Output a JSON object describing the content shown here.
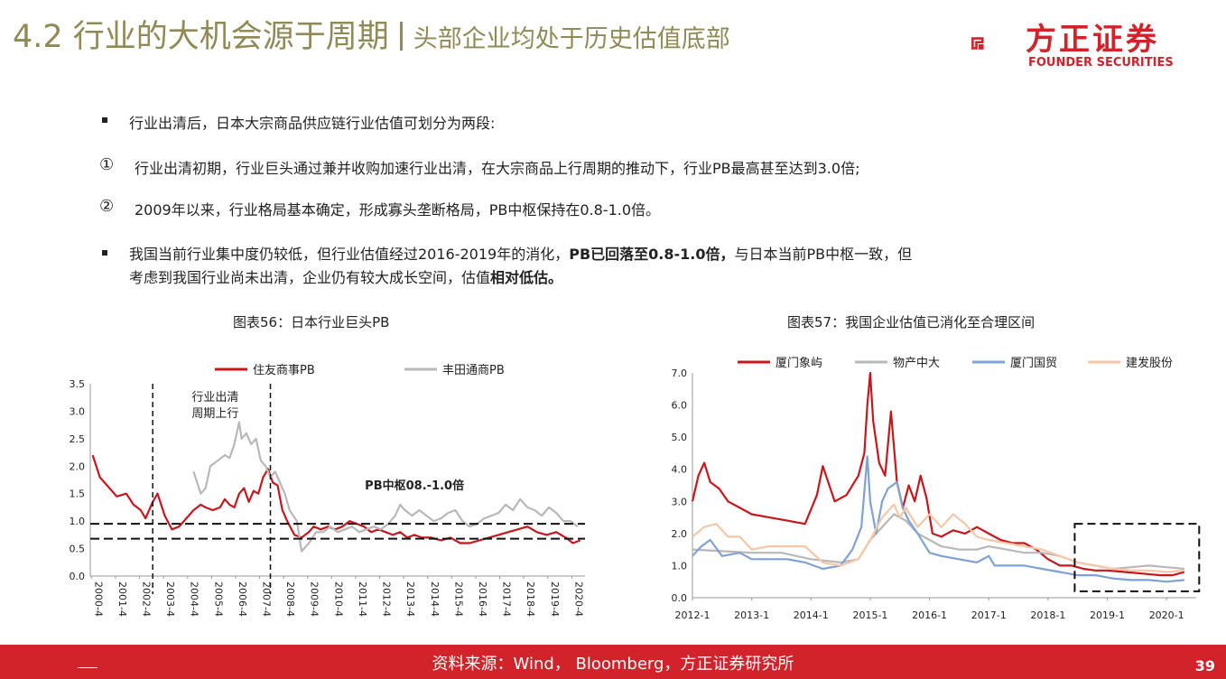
{
  "header": {
    "title": "4.2 行业的大机会源于周期",
    "subtitle": "头部企业均处于历史估值底部"
  },
  "logo": {
    "cn": "方正证券",
    "en": "FOUNDER SECURITIES",
    "color": "#d2232a"
  },
  "bullets": {
    "b1": "行业出清后，日本大宗商品供应链行业估值可划分为两段:",
    "c1_mark": "①",
    "c1": "行业出清初期，行业巨头通过兼并收购加速行业出清，在大宗商品上行周期的推动下，行业PB最高甚至达到3.0倍;",
    "c2_mark": "②",
    "c2": "2009年以来，行业格局基本确定，形成寡头垄断格局，PB中枢保持在0.8-1.0倍。",
    "b2_p1": "我国当前行业集中度仍较低，但行业估值经过2016-2019年的消化，",
    "b2_bold": "PB已回落至0.8-1.0倍，",
    "b2_p2": "与日本当前PB中枢一致，但",
    "b2_l2_p1": "考虑到我国行业尚未出清，企业仍有较大成长空间，估值",
    "b2_l2_bold": "相对低估。"
  },
  "chart_titles": {
    "left": "图表56：日本行业巨头PB",
    "right": "图表57：我国企业估值已消化至合理区间"
  },
  "footer": {
    "source": "资料来源：Wind， Bloomberg，方正证券研究所",
    "page": "39"
  },
  "chart_data": [
    {
      "type": "line",
      "x_ticks": [
        "2000-4",
        "2001-4",
        "2002-4",
        "2003-4",
        "2004-4",
        "2005-4",
        "2006-4",
        "2007-4",
        "2008-4",
        "2009-4",
        "2010-4",
        "2011-4",
        "2012-4",
        "2013-4",
        "2014-4",
        "2015-4",
        "2016-4",
        "2017-4",
        "2018-4",
        "2019-4",
        "2020-4"
      ],
      "y_ticks": [
        "0.0",
        "0.5",
        "1.0",
        "1.5",
        "2.0",
        "2.5",
        "3.0",
        "3.5"
      ],
      "ylim": [
        0,
        3.5
      ],
      "series": [
        {
          "name": "住友商事PB",
          "color": "#c8161d",
          "x": [
            2000.3,
            2000.6,
            2001.0,
            2001.3,
            2001.7,
            2002.0,
            2002.3,
            2002.5,
            2002.8,
            2003.0,
            2003.3,
            2003.6,
            2003.9,
            2004.2,
            2004.5,
            2004.8,
            2005.0,
            2005.3,
            2005.6,
            2005.8,
            2006.0,
            2006.2,
            2006.4,
            2006.6,
            2006.8,
            2007.0,
            2007.2,
            2007.4,
            2007.6,
            2007.8,
            2008.0,
            2008.2,
            2008.4,
            2008.7,
            2009.0,
            2009.3,
            2009.5,
            2009.8,
            2010.1,
            2010.4,
            2010.7,
            2011.0,
            2011.3,
            2011.6,
            2011.9,
            2012.2,
            2012.5,
            2012.8,
            2013.1,
            2013.4,
            2013.7,
            2014.0,
            2014.4,
            2014.8,
            2015.2,
            2015.6,
            2016.0,
            2016.4,
            2016.8,
            2017.2,
            2017.6,
            2018.0,
            2018.4,
            2018.8,
            2019.2,
            2019.6,
            2020.0,
            2020.3,
            2020.6
          ],
          "y": [
            2.2,
            1.8,
            1.6,
            1.45,
            1.5,
            1.3,
            1.2,
            1.05,
            1.35,
            1.5,
            1.1,
            0.85,
            0.9,
            1.05,
            1.2,
            1.3,
            1.25,
            1.2,
            1.25,
            1.4,
            1.3,
            1.25,
            1.5,
            1.6,
            1.35,
            1.55,
            1.5,
            1.8,
            1.95,
            1.7,
            1.65,
            1.2,
            1.0,
            0.75,
            0.7,
            0.8,
            0.9,
            0.85,
            0.9,
            0.85,
            0.9,
            1.0,
            0.95,
            0.9,
            0.8,
            0.85,
            0.8,
            0.75,
            0.8,
            0.7,
            0.75,
            0.7,
            0.7,
            0.65,
            0.7,
            0.6,
            0.6,
            0.65,
            0.7,
            0.75,
            0.8,
            0.85,
            0.9,
            0.8,
            0.75,
            0.8,
            0.7,
            0.6,
            0.65
          ]
        },
        {
          "name": "丰田通商PB",
          "color": "#b8b8b8",
          "x": [
            2004.5,
            2004.8,
            2005.0,
            2005.2,
            2005.5,
            2005.8,
            2006.0,
            2006.2,
            2006.4,
            2006.5,
            2006.7,
            2006.9,
            2007.1,
            2007.3,
            2007.5,
            2007.7,
            2007.9,
            2008.1,
            2008.3,
            2008.5,
            2008.8,
            2009.0,
            2009.3,
            2009.6,
            2009.9,
            2010.2,
            2010.5,
            2010.8,
            2011.1,
            2011.4,
            2011.7,
            2012.0,
            2012.3,
            2012.6,
            2012.9,
            2013.1,
            2013.3,
            2013.6,
            2013.9,
            2014.2,
            2014.5,
            2014.8,
            2015.1,
            2015.4,
            2015.7,
            2016.0,
            2016.3,
            2016.6,
            2016.9,
            2017.2,
            2017.5,
            2017.8,
            2018.1,
            2018.4,
            2018.7,
            2019.0,
            2019.3,
            2019.6,
            2019.9,
            2020.2,
            2020.5
          ],
          "y": [
            1.9,
            1.5,
            1.6,
            2.0,
            2.1,
            2.2,
            2.15,
            2.4,
            2.8,
            2.5,
            2.6,
            2.4,
            2.5,
            2.1,
            2.0,
            1.8,
            1.9,
            1.7,
            1.5,
            1.2,
            1.0,
            0.45,
            0.6,
            0.8,
            0.8,
            0.9,
            0.8,
            0.85,
            0.9,
            0.8,
            0.85,
            0.9,
            0.85,
            0.95,
            1.1,
            1.3,
            1.2,
            1.1,
            1.2,
            1.1,
            1.0,
            1.05,
            1.15,
            1.2,
            1.0,
            0.9,
            0.95,
            1.05,
            1.1,
            1.15,
            1.3,
            1.2,
            1.4,
            1.25,
            1.2,
            1.1,
            1.25,
            1.15,
            1.0,
            1.0,
            0.9
          ]
        }
      ],
      "annotations": {
        "cycle_label_l1": "行业出清",
        "cycle_label_l2": "周期上行",
        "center_label": "PB中枢08.-1.0倍"
      }
    },
    {
      "type": "line",
      "x_ticks": [
        "2012-1",
        "2013-1",
        "2014-1",
        "2015-1",
        "2016-1",
        "2017-1",
        "2018-1",
        "2019-1",
        "2020-1"
      ],
      "y_ticks": [
        "0.0",
        "1.0",
        "2.0",
        "3.0",
        "4.0",
        "5.0",
        "6.0",
        "7.0"
      ],
      "ylim": [
        0,
        7
      ],
      "series": [
        {
          "name": "厦门象屿",
          "color": "#c8161d",
          "x": [
            2012.0,
            2012.1,
            2012.2,
            2012.3,
            2012.45,
            2012.6,
            2012.8,
            2013.0,
            2013.3,
            2013.6,
            2013.9,
            2014.1,
            2014.2,
            2014.4,
            2014.6,
            2014.8,
            2014.9,
            2014.95,
            2015.0,
            2015.05,
            2015.15,
            2015.25,
            2015.35,
            2015.45,
            2015.55,
            2015.65,
            2015.75,
            2015.85,
            2015.95,
            2016.05,
            2016.2,
            2016.4,
            2016.6,
            2016.8,
            2017.0,
            2017.2,
            2017.4,
            2017.6,
            2017.8,
            2018.0,
            2018.2,
            2018.4,
            2018.6,
            2018.8,
            2019.0,
            2019.3,
            2019.6,
            2019.9,
            2020.1,
            2020.3
          ],
          "y": [
            3.0,
            3.8,
            4.2,
            3.6,
            3.4,
            3.0,
            2.8,
            2.6,
            2.5,
            2.4,
            2.3,
            3.2,
            4.1,
            3.0,
            3.2,
            3.8,
            4.5,
            6.0,
            7.0,
            5.5,
            4.2,
            3.8,
            5.8,
            3.6,
            2.8,
            3.5,
            3.0,
            3.8,
            3.1,
            2.0,
            1.9,
            2.1,
            2.0,
            2.2,
            2.0,
            1.8,
            1.7,
            1.7,
            1.5,
            1.2,
            1.0,
            1.0,
            0.9,
            0.85,
            0.85,
            0.8,
            0.75,
            0.7,
            0.7,
            0.8
          ]
        },
        {
          "name": "物产中大",
          "color": "#b8b8b8",
          "x": [
            2012.0,
            2012.5,
            2013.0,
            2013.5,
            2014.0,
            2014.5,
            2014.8,
            2015.0,
            2015.2,
            2015.4,
            2015.6,
            2015.8,
            2016.0,
            2016.2,
            2016.5,
            2016.8,
            2017.0,
            2017.3,
            2017.6,
            2017.9,
            2018.2,
            2018.5,
            2018.8,
            2019.1,
            2019.4,
            2019.7,
            2020.0,
            2020.3
          ],
          "y": [
            1.5,
            1.45,
            1.4,
            1.4,
            1.2,
            1.1,
            1.2,
            1.8,
            2.2,
            2.6,
            2.4,
            2.0,
            1.8,
            1.6,
            1.5,
            1.5,
            1.6,
            1.5,
            1.4,
            1.4,
            1.3,
            1.1,
            1.0,
            0.9,
            0.95,
            1.0,
            0.95,
            0.9
          ]
        },
        {
          "name": "厦门国贸",
          "color": "#7fa1d6",
          "x": [
            2012.0,
            2012.15,
            2012.3,
            2012.5,
            2012.8,
            2013.0,
            2013.3,
            2013.6,
            2013.9,
            2014.2,
            2014.5,
            2014.7,
            2014.85,
            2014.95,
            2015.0,
            2015.1,
            2015.2,
            2015.3,
            2015.45,
            2015.55,
            2015.65,
            2015.8,
            2016.0,
            2016.2,
            2016.5,
            2016.8,
            2017.0,
            2017.1,
            2017.3,
            2017.6,
            2017.9,
            2018.2,
            2018.5,
            2018.8,
            2019.1,
            2019.4,
            2019.7,
            2020.0,
            2020.3
          ],
          "y": [
            1.3,
            1.6,
            1.8,
            1.3,
            1.4,
            1.2,
            1.2,
            1.2,
            1.1,
            0.9,
            1.0,
            1.5,
            2.2,
            4.4,
            3.0,
            2.0,
            3.0,
            3.4,
            3.6,
            2.8,
            2.4,
            2.0,
            1.4,
            1.3,
            1.2,
            1.1,
            1.3,
            1.0,
            1.0,
            1.0,
            0.9,
            0.8,
            0.7,
            0.7,
            0.6,
            0.55,
            0.55,
            0.5,
            0.55
          ]
        },
        {
          "name": "建发股份",
          "color": "#f5c7a6",
          "x": [
            2012.0,
            2012.2,
            2012.4,
            2012.6,
            2012.8,
            2013.0,
            2013.3,
            2013.6,
            2013.9,
            2014.2,
            2014.5,
            2014.8,
            2015.0,
            2015.2,
            2015.4,
            2015.5,
            2015.6,
            2015.8,
            2016.0,
            2016.2,
            2016.4,
            2016.6,
            2016.8,
            2017.0,
            2017.3,
            2017.6,
            2017.9,
            2018.2,
            2018.5,
            2018.8,
            2019.1,
            2019.4,
            2019.7,
            2020.0,
            2020.3
          ],
          "y": [
            1.9,
            2.2,
            2.3,
            1.9,
            1.9,
            1.5,
            1.6,
            1.6,
            1.6,
            1.1,
            1.0,
            1.2,
            1.8,
            2.5,
            2.9,
            2.5,
            2.8,
            2.2,
            2.6,
            2.2,
            2.6,
            2.3,
            1.9,
            1.8,
            1.7,
            1.6,
            1.5,
            1.3,
            1.1,
            1.0,
            0.9,
            0.85,
            0.85,
            0.8,
            0.85
          ]
        }
      ]
    }
  ]
}
